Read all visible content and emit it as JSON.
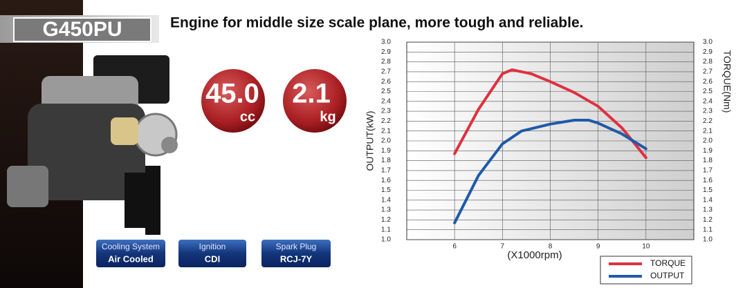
{
  "model": "G450PU",
  "headline": "Engine for middle size scale plane, more tough and reliable.",
  "badges": [
    {
      "value": "45.0",
      "unit": "cc"
    },
    {
      "value": "2.1",
      "unit": "kg"
    }
  ],
  "specs": [
    {
      "label": "Cooling System",
      "value": "Air Cooled"
    },
    {
      "label": "Ignition",
      "value": "CDI"
    },
    {
      "label": "Spark Plug",
      "value": "RCJ-7Y"
    }
  ],
  "chart_data": {
    "type": "line",
    "xlabel": "(X1000rpm)",
    "ylabel": "OUTPUT(kW)",
    "y2label": "TORQUE(Nm)",
    "xlim": [
      5,
      11
    ],
    "xticks": [
      6,
      7,
      8,
      9,
      10
    ],
    "ylim": [
      1,
      3
    ],
    "yticks": [
      {
        "value": 1,
        "label": "1.0"
      },
      1.1,
      1.2,
      1.3,
      1.4,
      1.5,
      1.6,
      1.7,
      1.8,
      1.9,
      {
        "value": 2,
        "label": "2.0"
      },
      2.1,
      2.2,
      2.3,
      2.4,
      2.5,
      2.6,
      2.7,
      2.8,
      2.9,
      {
        "value": 3,
        "label": "3.0"
      }
    ],
    "y2lim": [
      1,
      3
    ],
    "y2ticks": [
      {
        "value": 1,
        "label": "1.0"
      },
      1.1,
      1.2,
      1.3,
      1.4,
      1.5,
      1.6,
      1.7,
      1.8,
      1.9,
      {
        "value": 2,
        "label": "2.0"
      },
      2.1,
      2.2,
      2.3,
      2.4,
      2.5,
      2.6,
      2.7,
      2.8,
      2.9,
      {
        "value": 3,
        "label": "3.0"
      }
    ],
    "grid": true,
    "legend": "lower right",
    "series": [
      {
        "name": "TORQUE",
        "color": "#e0303f",
        "axis": "y2",
        "x": [
          6,
          6.5,
          7,
          7.2,
          7.6,
          8,
          8.5,
          9,
          9.5,
          10
        ],
        "values": [
          1.87,
          2.32,
          2.68,
          2.72,
          2.68,
          2.6,
          2.49,
          2.35,
          2.13,
          1.83
        ]
      },
      {
        "name": "OUTPUT",
        "color": "#1f5aa8",
        "x": [
          6,
          6.5,
          7,
          7.4,
          8,
          8.5,
          8.8,
          9,
          9.5,
          10
        ],
        "values": [
          1.17,
          1.65,
          1.97,
          2.1,
          2.17,
          2.21,
          2.21,
          2.18,
          2.07,
          1.92
        ]
      }
    ]
  }
}
